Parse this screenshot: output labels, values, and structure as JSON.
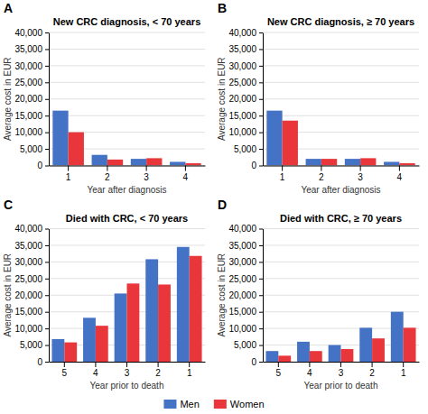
{
  "chart_data": [
    {
      "type": "bar",
      "title": "New CRC diagnosis, < 70 years",
      "annotation": "A",
      "xlabel": "Year after diagnosis",
      "ylabel": "Average cost in EUR",
      "categories": [
        1,
        2,
        3,
        4
      ],
      "series": [
        {
          "name": "Men",
          "color": "#4472C4",
          "values": [
            16500,
            3200,
            2000,
            1100
          ]
        },
        {
          "name": "Women",
          "color": "#E8363A",
          "values": [
            10000,
            1800,
            2200,
            700
          ]
        }
      ],
      "ylim": [
        0,
        40000
      ],
      "yticks": [
        0,
        {
          "value": 5000,
          "label": "5,000"
        },
        {
          "value": 10000,
          "label": "10,000"
        },
        {
          "value": 15000,
          "label": "15,000"
        },
        {
          "value": 20000,
          "label": "20,000"
        },
        {
          "value": 25000,
          "label": "25,000"
        },
        {
          "value": 30000,
          "label": "30,000"
        },
        {
          "value": 35000,
          "label": "35,000"
        },
        {
          "value": 40000,
          "label": "40,000"
        }
      ],
      "grid": true,
      "legend": "bottom"
    },
    {
      "type": "bar",
      "title": "New CRC diagnosis, ≥ 70 years",
      "annotation": "B",
      "xlabel": "Year after diagnosis",
      "ylabel": "Average cost in EUR",
      "categories": [
        1,
        2,
        3,
        4
      ],
      "series": [
        {
          "name": "Men",
          "color": "#4472C4",
          "values": [
            16500,
            2000,
            2000,
            1100
          ]
        },
        {
          "name": "Women",
          "color": "#E8363A",
          "values": [
            13500,
            2000,
            2200,
            700
          ]
        }
      ],
      "ylim": [
        0,
        40000
      ],
      "yticks": [
        0,
        {
          "value": 5000,
          "label": "5,000"
        },
        {
          "value": 10000,
          "label": "10,000"
        },
        {
          "value": 15000,
          "label": "15,000"
        },
        {
          "value": 20000,
          "label": "20,000"
        },
        {
          "value": 25000,
          "label": "25,000"
        },
        {
          "value": 30000,
          "label": "30,000"
        },
        {
          "value": 35000,
          "label": "35,000"
        },
        {
          "value": 40000,
          "label": "40,000"
        }
      ],
      "grid": true
    },
    {
      "type": "bar",
      "title": "Died with CRC, < 70 years",
      "annotation": "C",
      "xlabel": "Year prior to death",
      "ylabel": "Average cost in EUR",
      "categories": [
        5,
        4,
        3,
        2,
        1
      ],
      "series": [
        {
          "name": "Men",
          "color": "#4472C4",
          "values": [
            6800,
            13200,
            20500,
            30800,
            34500
          ]
        },
        {
          "name": "Women",
          "color": "#E8363A",
          "values": [
            5800,
            10800,
            23500,
            23200,
            31800
          ]
        }
      ],
      "ylim": [
        0,
        40000
      ],
      "yticks": [
        0,
        {
          "value": 5000,
          "label": "5,000"
        },
        {
          "value": 10000,
          "label": "10,000"
        },
        {
          "value": 15000,
          "label": "15,000"
        },
        {
          "value": 20000,
          "label": "20,000"
        },
        {
          "value": 25000,
          "label": "25,000"
        },
        {
          "value": 30000,
          "label": "30,000"
        },
        {
          "value": 35000,
          "label": "35,000"
        },
        {
          "value": 40000,
          "label": "40,000"
        }
      ],
      "grid": true
    },
    {
      "type": "bar",
      "title": "Died with CRC, ≥ 70 years",
      "annotation": "D",
      "xlabel": "Year prior to death",
      "ylabel": "Average cost in EUR",
      "categories": [
        5,
        4,
        3,
        2,
        1
      ],
      "series": [
        {
          "name": "Men",
          "color": "#4472C4",
          "values": [
            3200,
            6000,
            5000,
            10200,
            15000
          ]
        },
        {
          "name": "Women",
          "color": "#E8363A",
          "values": [
            1800,
            3200,
            3800,
            7000,
            10200
          ]
        }
      ],
      "ylim": [
        0,
        40000
      ],
      "yticks": [
        0,
        {
          "value": 5000,
          "label": "5,000"
        },
        {
          "value": 10000,
          "label": "10,000"
        },
        {
          "value": 15000,
          "label": "15,000"
        },
        {
          "value": 20000,
          "label": "20,000"
        },
        {
          "value": 25000,
          "label": "25,000"
        },
        {
          "value": 30000,
          "label": "30,000"
        },
        {
          "value": 35000,
          "label": "35,000"
        },
        {
          "value": 40000,
          "label": "40,000"
        }
      ],
      "grid": true
    }
  ]
}
